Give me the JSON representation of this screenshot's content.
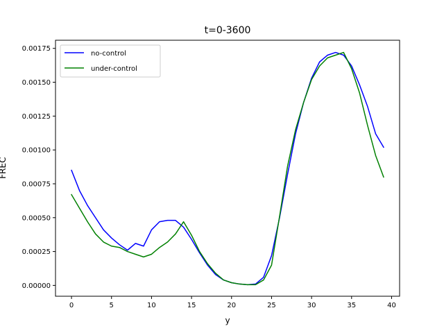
{
  "chart_data": {
    "type": "line",
    "title": "t=0-3600",
    "xlabel": "y",
    "ylabel": "FREC",
    "xlim": [
      -2,
      41
    ],
    "ylim": [
      -8e-05,
      0.00181
    ],
    "xticks": [
      0,
      5,
      10,
      15,
      20,
      25,
      30,
      35,
      40
    ],
    "xtick_labels": [
      "0",
      "5",
      "10",
      "15",
      "20",
      "25",
      "30",
      "35",
      "40"
    ],
    "yticks": [
      0,
      0.00025,
      0.0005,
      0.00075,
      0.001,
      0.00125,
      0.0015,
      0.00175
    ],
    "ytick_labels": [
      "0.00000",
      "0.00025",
      "0.00050",
      "0.00075",
      "0.00100",
      "0.00125",
      "0.00150",
      "0.00175"
    ],
    "grid": false,
    "legend_position": "upper-left",
    "x": [
      0,
      1,
      2,
      3,
      4,
      5,
      6,
      7,
      8,
      9,
      10,
      11,
      12,
      13,
      14,
      15,
      16,
      17,
      18,
      19,
      20,
      21,
      22,
      23,
      24,
      25,
      26,
      27,
      28,
      29,
      30,
      31,
      32,
      33,
      34,
      35,
      36,
      37,
      38,
      39
    ],
    "series": [
      {
        "name": "no-control",
        "color": "#0000ff",
        "values": [
          0.00085,
          0.0007,
          0.00059,
          0.0005,
          0.00041,
          0.00035,
          0.0003,
          0.00026,
          0.00031,
          0.00029,
          0.00041,
          0.00047,
          0.00048,
          0.00048,
          0.00043,
          0.00034,
          0.00024,
          0.00015,
          8e-05,
          4e-05,
          2e-05,
          1e-05,
          5e-06,
          1e-05,
          6e-05,
          0.00022,
          0.0005,
          0.00082,
          0.00112,
          0.00135,
          0.00153,
          0.00165,
          0.0017,
          0.00172,
          0.0017,
          0.00162,
          0.00148,
          0.00132,
          0.00112,
          0.00102
        ]
      },
      {
        "name": "under-control",
        "color": "#008000",
        "values": [
          0.00067,
          0.00057,
          0.00047,
          0.00038,
          0.00032,
          0.00029,
          0.00028,
          0.00025,
          0.00023,
          0.00021,
          0.00023,
          0.00028,
          0.00032,
          0.00038,
          0.00047,
          0.00037,
          0.00025,
          0.00016,
          9e-05,
          4e-05,
          2e-05,
          1e-05,
          5e-06,
          5e-06,
          4e-05,
          0.00015,
          0.00051,
          0.00088,
          0.00115,
          0.00135,
          0.00152,
          0.00162,
          0.00168,
          0.0017,
          0.00172,
          0.0016,
          0.00142,
          0.00118,
          0.00096,
          0.0008
        ]
      }
    ]
  }
}
